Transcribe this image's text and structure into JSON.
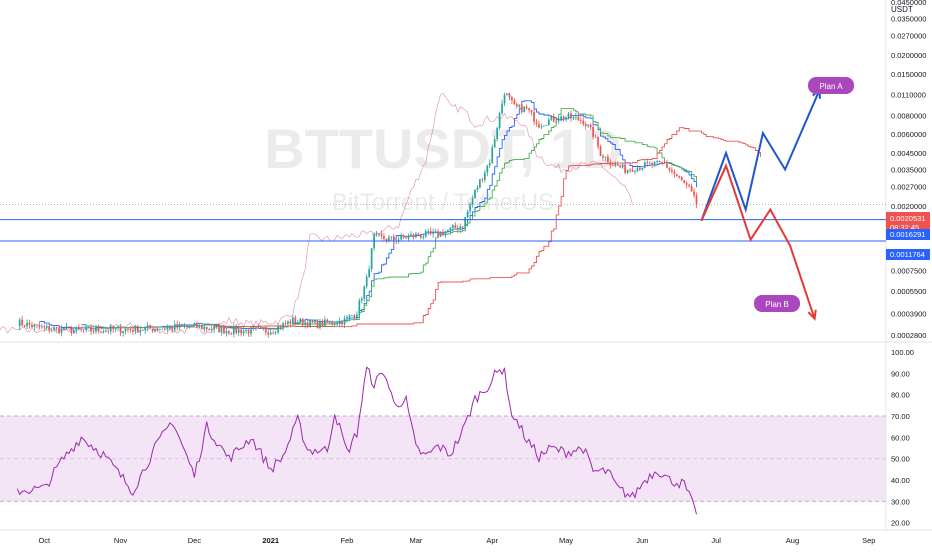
{
  "watermark": {
    "ticker": "BTTUSDT, 1D",
    "description": "BitTorrent / TetherUS"
  },
  "currency_label": "USDT",
  "price_axis": {
    "ticks": [
      "0.0450000",
      "0.0350000",
      "0.0270000",
      "0.0200000",
      "0.0150000",
      "0.0110000",
      "0.0080000",
      "0.0060000",
      "0.0045000",
      "0.0035000",
      "0.0027000",
      "0.0020000",
      "0.0014000",
      "0.0010000",
      "0.0007500",
      "0.0005500",
      "0.0003900",
      "0.0002800"
    ],
    "price_tag": {
      "price": "0.0020531",
      "countdown": "08:32:45",
      "color": "#ef5350"
    },
    "level_tags": [
      {
        "label": "0.0016291",
        "color": "#2962ff"
      },
      {
        "label": "0.0011764",
        "color": "#2962ff"
      }
    ]
  },
  "time_axis": {
    "labels": [
      "Oct",
      "Nov",
      "Dec",
      "2021",
      "Feb",
      "Mar",
      "Apr",
      "May",
      "Jun",
      "Jul",
      "Aug",
      "Sep"
    ]
  },
  "annotations": [
    {
      "text": "Plan A",
      "color": "#ab47bc"
    },
    {
      "text": "Plan B",
      "color": "#ab47bc"
    }
  ],
  "colors": {
    "up": "#26a69a",
    "down": "#ef5350",
    "ichimoku_red": "#ef5350",
    "ichimoku_blue": "#2962ff",
    "ichimoku_green": "#4caf50",
    "lagging": "#c2185b",
    "rsi_line": "#9c27b0",
    "rsi_band": "#f3e5f5",
    "path_a": "#1e56d0",
    "path_b": "#e53935"
  },
  "chart_data": [
    {
      "type": "candlestick",
      "symbol": "BTTUSDT",
      "title": "BTTUSDT, 1D",
      "subtitle": "BitTorrent / TetherUS",
      "yscale": "log",
      "ylim": [
        0.00026,
        0.045
      ],
      "x": [
        "Oct",
        "Nov",
        "Dec",
        "2021",
        "Feb",
        "Mar",
        "Apr",
        "May",
        "Jun",
        "Jul",
        "Aug",
        "Sep"
      ],
      "close_series": [
        [
          "2020-09-20",
          0.00034
        ],
        [
          "2020-10-01",
          0.00031
        ],
        [
          "2020-10-15",
          0.0003
        ],
        [
          "2020-11-01",
          0.000305
        ],
        [
          "2020-11-15",
          0.00031
        ],
        [
          "2020-12-01",
          0.00032
        ],
        [
          "2020-12-15",
          0.0003
        ],
        [
          "2021-01-01",
          0.0003
        ],
        [
          "2021-01-10",
          0.00035
        ],
        [
          "2021-01-20",
          0.00033
        ],
        [
          "2021-01-31",
          0.00035
        ],
        [
          "2021-02-05",
          0.0004
        ],
        [
          "2021-02-09",
          0.00065
        ],
        [
          "2021-02-12",
          0.00125
        ],
        [
          "2021-02-20",
          0.0012
        ],
        [
          "2021-03-01",
          0.00128
        ],
        [
          "2021-03-10",
          0.0013
        ],
        [
          "2021-03-20",
          0.0015
        ],
        [
          "2021-03-25",
          0.0025
        ],
        [
          "2021-03-31",
          0.004
        ],
        [
          "2021-04-03",
          0.0068
        ],
        [
          "2021-04-06",
          0.0115
        ],
        [
          "2021-04-10",
          0.009
        ],
        [
          "2021-04-15",
          0.0088
        ],
        [
          "2021-04-20",
          0.007
        ],
        [
          "2021-04-25",
          0.0075
        ],
        [
          "2021-05-01",
          0.0078
        ],
        [
          "2021-05-08",
          0.0074
        ],
        [
          "2021-05-12",
          0.006
        ],
        [
          "2021-05-15",
          0.0045
        ],
        [
          "2021-05-20",
          0.0038
        ],
        [
          "2021-05-25",
          0.0035
        ],
        [
          "2021-06-01",
          0.0037
        ],
        [
          "2021-06-10",
          0.0038
        ],
        [
          "2021-06-20",
          0.0026
        ],
        [
          "2021-06-23",
          0.002053
        ]
      ],
      "levels": [
        {
          "value": 0.0020531,
          "label": "0.0020531"
        },
        {
          "value": 0.0016291,
          "label": "0.0016291"
        },
        {
          "value": 0.0011764,
          "label": "0.0011764"
        }
      ],
      "scenarios": [
        {
          "name": "Plan A",
          "points": [
            [
              "2021-06-25",
              0.0016
            ],
            [
              "2021-07-05",
              0.0045
            ],
            [
              "2021-07-13",
              0.0019
            ],
            [
              "2021-07-20",
              0.0061
            ],
            [
              "2021-07-29",
              0.0035
            ],
            [
              "2021-08-12",
              0.0118
            ]
          ]
        },
        {
          "name": "Plan B",
          "points": [
            [
              "2021-06-25",
              0.0016
            ],
            [
              "2021-07-05",
              0.0037
            ],
            [
              "2021-07-15",
              0.0012
            ],
            [
              "2021-07-23",
              0.0019
            ],
            [
              "2021-07-31",
              0.0011
            ],
            [
              "2021-08-10",
              0.00036
            ]
          ]
        }
      ]
    },
    {
      "type": "line",
      "title": "RSI",
      "ylim": [
        18,
        100
      ],
      "y_ticks": [
        "100.00",
        "90.00",
        "80.00",
        "70.00",
        "60.00",
        "50.00",
        "40.00",
        "30.00",
        "20.00"
      ],
      "band": [
        30,
        70
      ],
      "midline": 50,
      "series": [
        {
          "values": [
            [
              "2020-09-20",
              35
            ],
            [
              "2020-10-01",
              36
            ],
            [
              "2020-10-08",
              49
            ],
            [
              "2020-10-16",
              60
            ],
            [
              "2020-10-25",
              52
            ],
            [
              "2020-11-01",
              42
            ],
            [
              "2020-11-06",
              35
            ],
            [
              "2020-11-15",
              55
            ],
            [
              "2020-11-22",
              68
            ],
            [
              "2020-12-01",
              42
            ],
            [
              "2020-12-06",
              65
            ],
            [
              "2020-12-15",
              50
            ],
            [
              "2020-12-24",
              60
            ],
            [
              "2021-01-01",
              45
            ],
            [
              "2021-01-06",
              51
            ],
            [
              "2021-01-12",
              68
            ],
            [
              "2021-01-16",
              54
            ],
            [
              "2021-01-24",
              54
            ],
            [
              "2021-01-27",
              72
            ],
            [
              "2021-02-01",
              53
            ],
            [
              "2021-02-05",
              62
            ],
            [
              "2021-02-09",
              92
            ],
            [
              "2021-02-12",
              85
            ],
            [
              "2021-02-16",
              91
            ],
            [
              "2021-02-20",
              76
            ],
            [
              "2021-02-25",
              77
            ],
            [
              "2021-03-01",
              55
            ],
            [
              "2021-03-05",
              51
            ],
            [
              "2021-03-10",
              56
            ],
            [
              "2021-03-15",
              52
            ],
            [
              "2021-03-20",
              63
            ],
            [
              "2021-03-25",
              78
            ],
            [
              "2021-03-31",
              85
            ],
            [
              "2021-04-02",
              89
            ],
            [
              "2021-04-06",
              93
            ],
            [
              "2021-04-08",
              74
            ],
            [
              "2021-04-15",
              59
            ],
            [
              "2021-04-20",
              51
            ],
            [
              "2021-04-25",
              55
            ],
            [
              "2021-05-01",
              53
            ],
            [
              "2021-05-08",
              55
            ],
            [
              "2021-05-12",
              44
            ],
            [
              "2021-05-18",
              44
            ],
            [
              "2021-05-22",
              36
            ],
            [
              "2021-05-28",
              32
            ],
            [
              "2021-06-02",
              40
            ],
            [
              "2021-06-07",
              45
            ],
            [
              "2021-06-12",
              40
            ],
            [
              "2021-06-18",
              38
            ],
            [
              "2021-06-23",
              24
            ]
          ]
        }
      ]
    }
  ]
}
